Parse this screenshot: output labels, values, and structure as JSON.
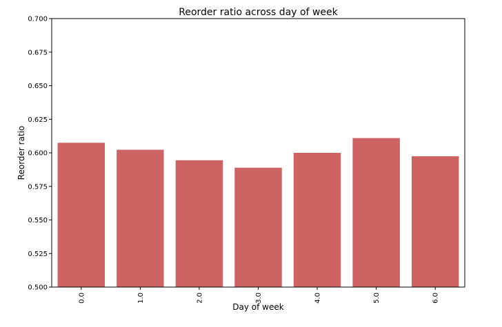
{
  "chart_data": {
    "type": "bar",
    "title": "Reorder ratio across day of week",
    "xlabel": "Day of week",
    "ylabel": "Reorder ratio",
    "categories": [
      "0.0",
      "1.0",
      "2.0",
      "3.0",
      "4.0",
      "5.0",
      "6.0"
    ],
    "values": [
      0.6075,
      0.6023,
      0.5945,
      0.5889,
      0.6,
      0.611,
      0.5975
    ],
    "ylim": [
      0.5,
      0.7
    ],
    "yticks": [
      "0.500",
      "0.525",
      "0.550",
      "0.575",
      "0.600",
      "0.625",
      "0.650",
      "0.675",
      "0.700"
    ],
    "grid": false,
    "x_tick_rotation": "vertical",
    "bar_color": "#cd6363"
  }
}
